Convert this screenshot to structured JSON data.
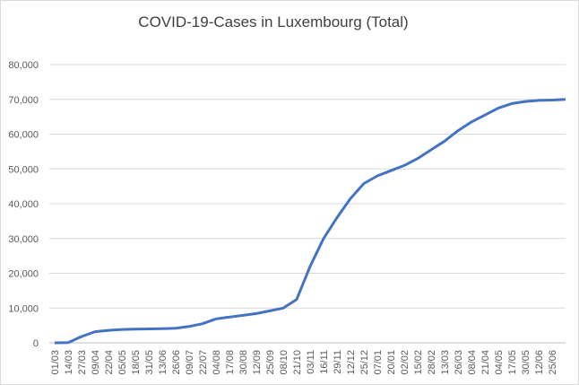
{
  "chart_data": {
    "type": "line",
    "title": "COVID-19-Cases in Luxembourg (Total)",
    "categories": [
      "01/03",
      "14/03",
      "27/03",
      "09/04",
      "22/04",
      "05/05",
      "18/05",
      "31/05",
      "13/06",
      "26/06",
      "09/07",
      "22/07",
      "04/08",
      "17/08",
      "30/08",
      "12/09",
      "25/09",
      "08/10",
      "21/10",
      "03/11",
      "16/11",
      "29/11",
      "12/12",
      "25/12",
      "07/01",
      "20/01",
      "02/02",
      "15/02",
      "28/02",
      "13/03",
      "26/03",
      "08/04",
      "21/04",
      "04/05",
      "17/05",
      "30/05",
      "12/06",
      "25/06",
      null
    ],
    "series": [
      {
        "name": "Total",
        "color": "#4472c4",
        "values": [
          0,
          50,
          1800,
          3200,
          3600,
          3850,
          3950,
          4000,
          4080,
          4200,
          4700,
          5500,
          6900,
          7400,
          7900,
          8400,
          9200,
          10000,
          12500,
          22000,
          30000,
          36000,
          41500,
          45800,
          48000,
          49500,
          51000,
          53000,
          55500,
          58000,
          61000,
          63500,
          65500,
          67500,
          68800,
          69400,
          69700,
          69800,
          70000
        ]
      }
    ],
    "ylim": [
      0,
      80000
    ],
    "yticks": [
      0,
      {
        "value": 10000,
        "label": "10,000"
      },
      {
        "value": 20000,
        "label": "20,000"
      },
      {
        "value": 30000,
        "label": "30,000"
      },
      {
        "value": 40000,
        "label": "40,000"
      },
      {
        "value": 50000,
        "label": "50,000"
      },
      {
        "value": 60000,
        "label": "60,000"
      },
      {
        "value": 70000,
        "label": "70,000"
      },
      {
        "value": 80000,
        "label": "80,000"
      }
    ],
    "grid": true
  }
}
